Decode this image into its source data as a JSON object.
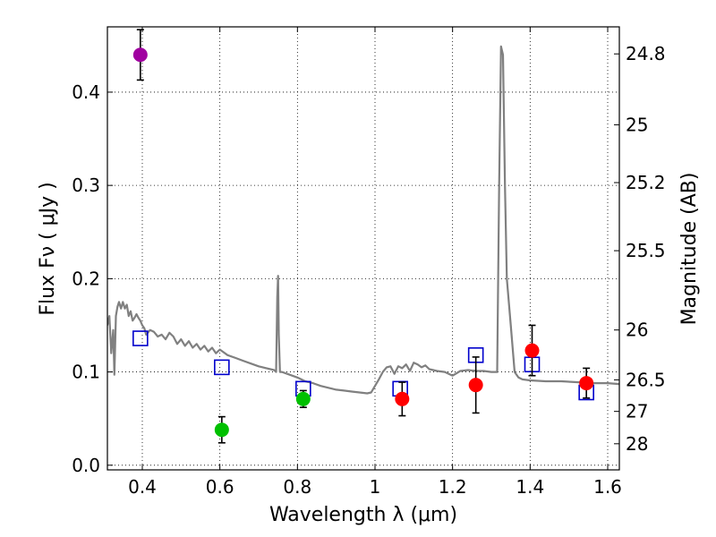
{
  "chart_data": {
    "type": "scatter",
    "xlabel": "Wavelength  λ (μm)",
    "ylabel": "Flux  Fν  ( μJy )",
    "ylabel_right": "Magnitude (AB)",
    "xlim": [
      0.31,
      1.63
    ],
    "ylim": [
      -0.005,
      0.47
    ],
    "grid": true,
    "x_ticks": [
      0.4,
      0.6,
      0.8,
      1.0,
      1.2,
      1.4,
      1.6
    ],
    "x_tick_labels": [
      "0.4",
      "0.6",
      "0.8",
      "1",
      "1.2",
      "1.4",
      "1.6"
    ],
    "y_ticks": [
      0.0,
      0.1,
      0.2,
      0.3,
      0.4
    ],
    "y_tick_labels": [
      "0.0",
      "0.1",
      "0.2",
      "0.3",
      "0.4"
    ],
    "right_ticks": [
      {
        "flux": 0.441,
        "label": "24.8"
      },
      {
        "flux": 0.365,
        "label": "25"
      },
      {
        "flux": 0.303,
        "label": "25.2"
      },
      {
        "flux": 0.23,
        "label": "25.5"
      },
      {
        "flux": 0.145,
        "label": "26"
      },
      {
        "flux": 0.0915,
        "label": "26.5"
      },
      {
        "flux": 0.0577,
        "label": "27"
      },
      {
        "flux": 0.023,
        "label": "28"
      }
    ],
    "series": [
      {
        "name": "model spectrum",
        "kind": "line",
        "color": "#808080",
        "x": [
          0.31,
          0.315,
          0.32,
          0.325,
          0.328,
          0.332,
          0.336,
          0.34,
          0.345,
          0.35,
          0.355,
          0.36,
          0.365,
          0.37,
          0.375,
          0.38,
          0.385,
          0.39,
          0.395,
          0.4,
          0.405,
          0.41,
          0.42,
          0.43,
          0.44,
          0.45,
          0.46,
          0.47,
          0.48,
          0.49,
          0.5,
          0.51,
          0.52,
          0.53,
          0.54,
          0.55,
          0.56,
          0.57,
          0.58,
          0.59,
          0.6,
          0.62,
          0.64,
          0.66,
          0.68,
          0.7,
          0.72,
          0.74,
          0.745,
          0.748,
          0.75,
          0.752,
          0.755,
          0.76,
          0.78,
          0.8,
          0.82,
          0.84,
          0.86,
          0.88,
          0.9,
          0.92,
          0.94,
          0.96,
          0.98,
          0.99,
          1.0,
          1.01,
          1.02,
          1.03,
          1.04,
          1.05,
          1.06,
          1.07,
          1.08,
          1.09,
          1.1,
          1.11,
          1.12,
          1.13,
          1.14,
          1.16,
          1.18,
          1.2,
          1.22,
          1.24,
          1.26,
          1.28,
          1.3,
          1.315,
          1.32,
          1.325,
          1.33,
          1.335,
          1.34,
          1.35,
          1.36,
          1.37,
          1.38,
          1.4,
          1.44,
          1.48,
          1.52,
          1.56,
          1.58,
          1.6,
          1.63
        ],
        "y": [
          0.15,
          0.16,
          0.12,
          0.145,
          0.097,
          0.16,
          0.17,
          0.175,
          0.168,
          0.175,
          0.168,
          0.172,
          0.16,
          0.165,
          0.155,
          0.158,
          0.162,
          0.158,
          0.155,
          0.15,
          0.147,
          0.14,
          0.145,
          0.143,
          0.138,
          0.14,
          0.135,
          0.142,
          0.138,
          0.13,
          0.135,
          0.128,
          0.133,
          0.126,
          0.13,
          0.124,
          0.128,
          0.122,
          0.126,
          0.12,
          0.124,
          0.118,
          0.115,
          0.112,
          0.109,
          0.106,
          0.104,
          0.102,
          0.1,
          0.18,
          0.203,
          0.14,
          0.1,
          0.1,
          0.097,
          0.094,
          0.09,
          0.088,
          0.085,
          0.083,
          0.081,
          0.08,
          0.079,
          0.078,
          0.077,
          0.078,
          0.085,
          0.092,
          0.1,
          0.105,
          0.106,
          0.098,
          0.106,
          0.104,
          0.108,
          0.101,
          0.11,
          0.108,
          0.105,
          0.107,
          0.103,
          0.101,
          0.1,
          0.096,
          0.101,
          0.102,
          0.101,
          0.101,
          0.1,
          0.1,
          0.3,
          0.449,
          0.44,
          0.3,
          0.2,
          0.15,
          0.1,
          0.094,
          0.092,
          0.091,
          0.09,
          0.09,
          0.089,
          0.088,
          0.088,
          0.088,
          0.087
        ]
      },
      {
        "name": "model photometry",
        "kind": "open-square",
        "color": "#0000cc",
        "x": [
          0.395,
          0.605,
          0.815,
          1.065,
          1.26,
          1.405,
          1.545
        ],
        "y": [
          0.136,
          0.105,
          0.082,
          0.082,
          0.118,
          0.108,
          0.078
        ]
      },
      {
        "name": "violet observation",
        "kind": "filled-circle",
        "color": "#a000a0",
        "x": [
          0.395
        ],
        "y": [
          0.44
        ],
        "err": [
          0.027
        ]
      },
      {
        "name": "green observations",
        "kind": "filled-circle",
        "color": "#00c000",
        "x": [
          0.605,
          0.815
        ],
        "y": [
          0.038,
          0.071
        ],
        "err": [
          0.014,
          0.009
        ]
      },
      {
        "name": "red observations",
        "kind": "filled-circle",
        "color": "#ff0000",
        "x": [
          1.07,
          1.26,
          1.405,
          1.545
        ],
        "y": [
          0.071,
          0.086,
          0.123,
          0.088
        ],
        "err": [
          0.018,
          0.03,
          0.027,
          0.016
        ]
      }
    ]
  }
}
